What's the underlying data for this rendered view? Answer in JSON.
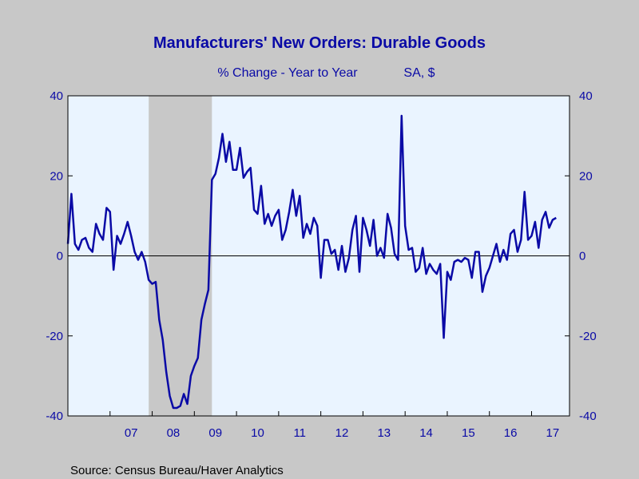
{
  "chart_data": {
    "type": "line",
    "title": "Manufacturers' New Orders: Durable Goods",
    "subtitle": "% Change - Year to Year",
    "units_note": "SA, $",
    "source": "Source:  Census Bureau/Haver Analytics",
    "ylim": [
      -40,
      40
    ],
    "yticks": [
      -40,
      -20,
      0,
      20,
      40
    ],
    "ytick_labels": [
      "-40",
      "-20",
      "0",
      "20",
      "40"
    ],
    "x_start": 2006.0,
    "x_end": 2017.9,
    "xtick_labels": [
      {
        "label": "07",
        "year": 2007
      },
      {
        "label": "08",
        "year": 2008
      },
      {
        "label": "09",
        "year": 2009
      },
      {
        "label": "10",
        "year": 2010
      },
      {
        "label": "11",
        "year": 2011
      },
      {
        "label": "12",
        "year": 2012
      },
      {
        "label": "13",
        "year": 2013
      },
      {
        "label": "14",
        "year": 2014
      },
      {
        "label": "15",
        "year": 2015
      },
      {
        "label": "16",
        "year": 2016
      },
      {
        "label": "17",
        "year": 2017
      }
    ],
    "recession": {
      "start": 2007.917,
      "end": 2009.417
    },
    "grid": false,
    "zero_line": true,
    "colors": {
      "line": "#0a0aa6",
      "plot_bg": "#eaf4ff",
      "page_bg": "#c8c8c8",
      "recession": "#c8c8c8",
      "text": "#0a0aa6"
    },
    "series": [
      {
        "x_start": 2006.0,
        "step_months": 1,
        "values": [
          3,
          15.5,
          3,
          1.5,
          4,
          4.5,
          2,
          1,
          8,
          5.5,
          4,
          12,
          11,
          -3.5,
          5,
          3,
          5.5,
          8.5,
          5,
          1,
          -1,
          1,
          -1.5,
          -6,
          -7,
          -6.5,
          -16,
          -21,
          -29,
          -35,
          -38,
          -38,
          -37.5,
          -34.5,
          -37,
          -30,
          -27.5,
          -25.5,
          -16,
          -12,
          -8.5,
          19,
          20.5,
          24.5,
          30.5,
          23.5,
          28.5,
          21.5,
          21.5,
          27,
          19.5,
          21,
          22,
          11.5,
          10.5,
          17.5,
          8,
          10.5,
          7.5,
          10,
          11.5,
          4,
          6.5,
          11,
          16.5,
          10,
          15,
          4.5,
          8,
          5.5,
          9.5,
          7.5,
          -5.5,
          4,
          4,
          0.5,
          1.5,
          -3.5,
          2.5,
          -4,
          -0.5,
          6.5,
          10,
          -4,
          9.5,
          6.5,
          2.5,
          9,
          0,
          2,
          -0.5,
          10.5,
          7,
          0.5,
          -1,
          35,
          7.5,
          1.5,
          2,
          -4,
          -3,
          2,
          -4.5,
          -2,
          -3.5,
          -4.5,
          -2,
          -20.5,
          -4,
          -6,
          -1.5,
          -1,
          -1.5,
          -0.5,
          -1,
          -5.5,
          1,
          1,
          -9,
          -5,
          -3,
          0,
          3,
          -1.5,
          1.5,
          -1,
          5.5,
          6.5,
          1,
          4,
          16,
          4,
          5,
          8.5,
          2,
          9,
          11,
          7,
          9,
          9.5
        ]
      }
    ]
  }
}
